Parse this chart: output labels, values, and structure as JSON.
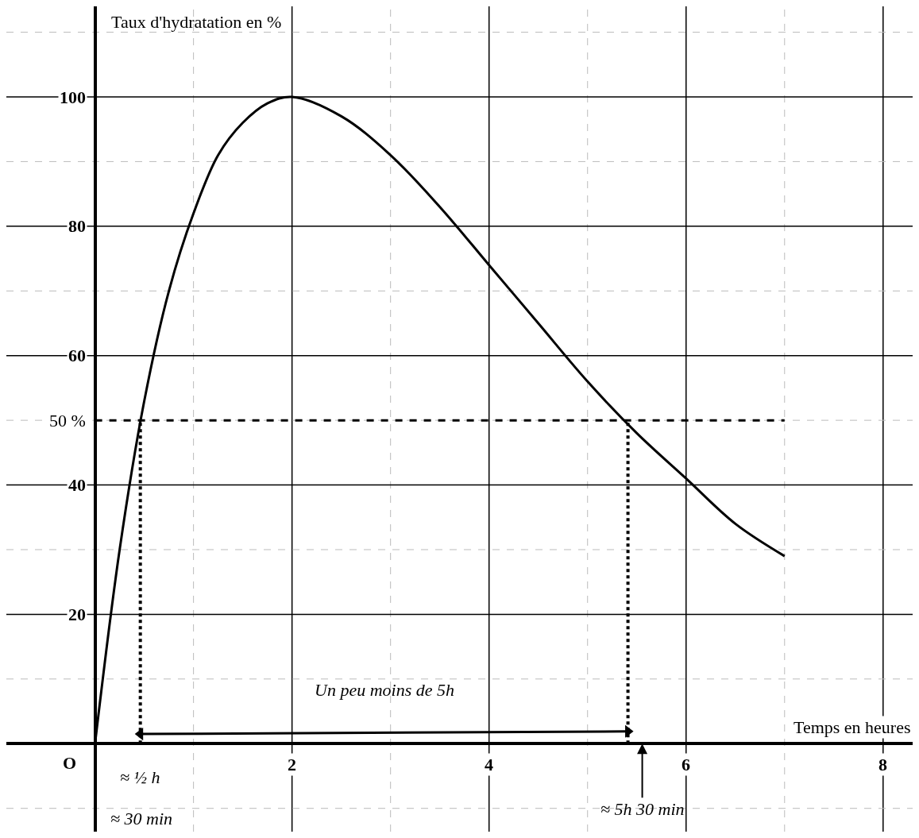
{
  "chart_data": {
    "type": "line",
    "xlabel": "Temps en heures",
    "ylabel": "Taux d'hydratation en %",
    "xlim": [
      -0.9,
      8.3
    ],
    "ylim": [
      -13.6,
      114
    ],
    "xticks": [
      {
        "value": 1,
        "label": null
      },
      2,
      {
        "value": 3,
        "label": null
      },
      4,
      {
        "value": 5,
        "label": null
      },
      6,
      {
        "value": 7,
        "label": null
      },
      8
    ],
    "yticks": [
      {
        "value": -10,
        "label": null
      },
      {
        "value": 10,
        "label": null
      },
      20,
      {
        "value": 30,
        "label": null
      },
      40,
      {
        "value": 50,
        "label": "50 %"
      },
      60,
      {
        "value": 70,
        "label": null
      },
      80,
      {
        "value": 90,
        "label": null
      },
      100,
      {
        "value": 110,
        "label": null
      }
    ],
    "grid": true,
    "series": [
      {
        "color": "#000000",
        "line_style": "solid",
        "x": [
          0,
          0.25,
          0.5,
          0.75,
          1,
          1.25,
          1.5,
          1.75,
          2,
          2.5,
          3,
          3.5,
          4,
          4.5,
          5,
          5.5,
          6,
          6.5,
          7
        ],
        "values": [
          0,
          30,
          53,
          70,
          82,
          91,
          96,
          99,
          100,
          97,
          91,
          83,
          74,
          65,
          56,
          48,
          41,
          34,
          29
        ]
      },
      {
        "color": "#000000",
        "line_style": "dashed",
        "x": [
          0,
          7
        ],
        "values": [
          50,
          50
        ]
      },
      {
        "color": "#000000",
        "line_style": "dotted",
        "x": [
          0.46,
          0.46
        ],
        "values": [
          0,
          50
        ]
      },
      {
        "color": "#000000",
        "line_style": "dotted",
        "x": [
          5.41,
          5.41
        ],
        "values": [
          0,
          50
        ]
      },
      {
        "color": "#000000",
        "line_style": "solid",
        "marker": "triangle",
        "x": [
          0.46,
          5.41
        ],
        "values": [
          1.5,
          1.9
        ]
      }
    ],
    "annotations": [
      "O",
      "Un peu moins de 5h",
      "≈ ½ h",
      "≈ 30 min",
      "≈ 5h 30 min"
    ]
  }
}
